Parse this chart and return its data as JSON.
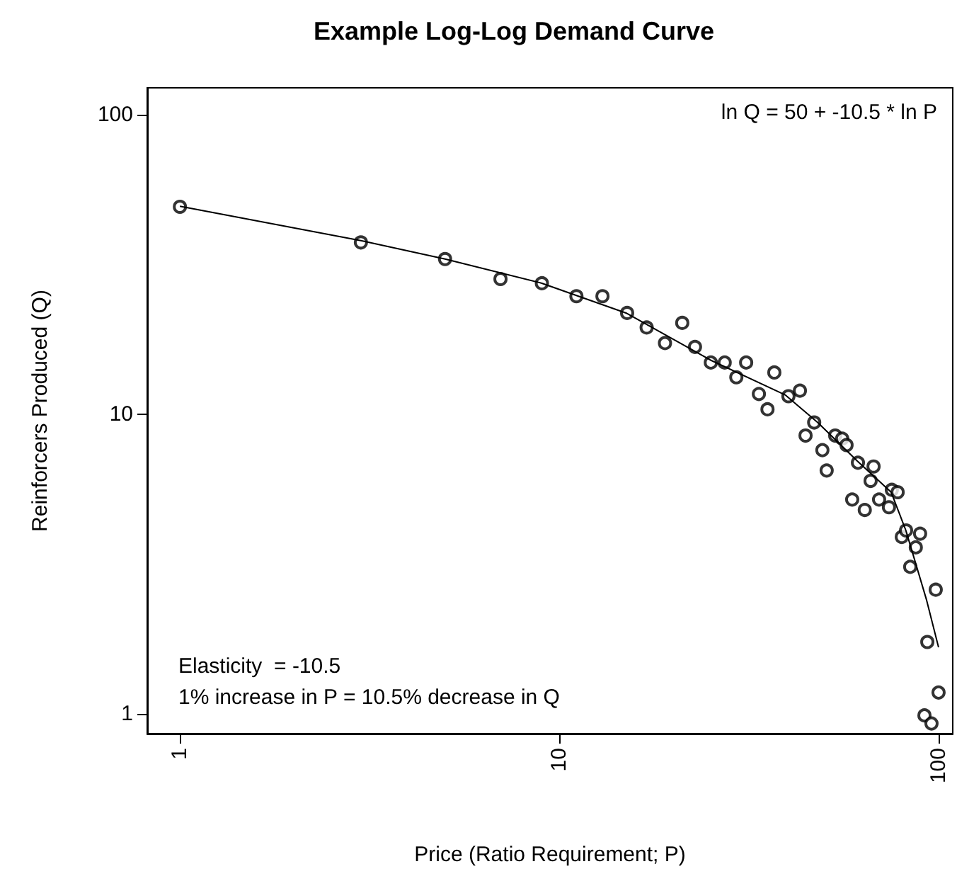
{
  "chart_data": {
    "type": "scatter",
    "title": "Example Log-Log Demand Curve",
    "xlabel": "Price (Ratio Requirement; P)",
    "ylabel": "Reinforcers Produced (Q)",
    "log": "xy",
    "xlim": [
      0.82,
      109
    ],
    "ylim": [
      0.86,
      123
    ],
    "xticks": [
      1,
      10,
      100
    ],
    "yticks": [
      1,
      10,
      100
    ],
    "grid": false,
    "annotations": [
      "ln Q = 50 + -10.5 * ln P",
      "Elasticity  = -10.5",
      "1% increase in P = 10.5% decrease in Q"
    ],
    "series": [
      {
        "color": "#000000",
        "marker": "circle",
        "x": [
          1,
          3,
          5,
          7,
          9,
          11.1,
          13,
          15.1,
          17,
          19,
          21.1,
          22.8,
          25.1,
          27.3,
          29.3,
          31.1,
          33.6,
          35.4,
          36.9,
          40.2,
          43.1,
          44.6,
          47,
          49.4,
          50.7,
          53.4,
          55.7,
          57.2,
          59.2,
          61.3,
          63.9,
          66.2,
          67.4,
          69.7,
          74,
          75.3,
          78,
          80,
          82.1,
          84.2,
          87.1,
          89.4,
          91.8,
          93.4,
          95.8,
          98.3,
          100
        ],
        "values": [
          49.3,
          37.5,
          33,
          28.3,
          27.4,
          24.8,
          24.8,
          21.8,
          19.5,
          17.3,
          20.2,
          16.8,
          14.9,
          14.9,
          13.3,
          14.9,
          11.7,
          10.4,
          13.8,
          11.5,
          12,
          8.5,
          9.4,
          7.6,
          6.5,
          8.5,
          8.3,
          7.9,
          5.2,
          6.9,
          4.8,
          6,
          6.7,
          5.2,
          4.9,
          5.6,
          5.5,
          3.9,
          4.1,
          3.1,
          3.6,
          4,
          0.99,
          1.74,
          0.93,
          2.6,
          1.18
        ]
      },
      {
        "type": "line",
        "color": "#000000",
        "marker": "none",
        "line_style": "solid",
        "x": [
          1,
          3,
          5,
          9,
          15,
          25,
          39.5,
          48,
          61,
          75,
          82,
          93,
          100
        ],
        "values": [
          49.5,
          38,
          33,
          27.4,
          21.8,
          15.2,
          11.6,
          9.4,
          7,
          5.5,
          4.1,
          2.4,
          1.67
        ]
      }
    ]
  }
}
